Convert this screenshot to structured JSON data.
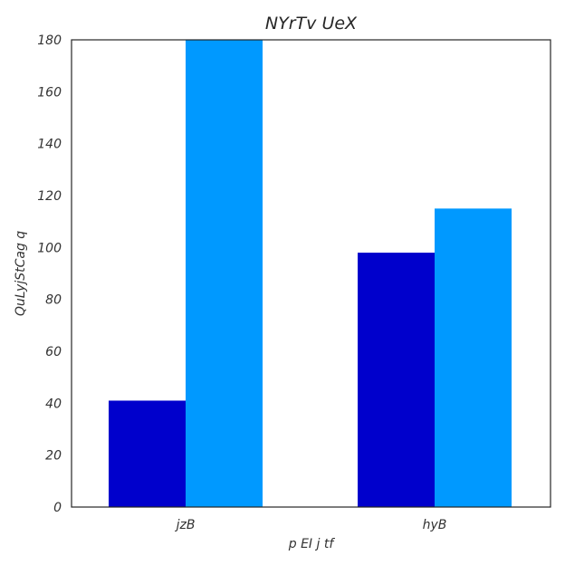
{
  "chart_data": {
    "type": "bar",
    "title": "NYrTv UeX",
    "xlabel": "p EI j tf",
    "ylabel": "QuLyjStCag q",
    "categories": [
      "jzB",
      "hyB"
    ],
    "series": [
      {
        "values": [
          41,
          98
        ],
        "color": "#0000cc"
      },
      {
        "values": [
          180,
          115
        ],
        "color": "#0099ff"
      }
    ],
    "ylim": [
      0,
      180
    ],
    "yticks": [
      0,
      20,
      40,
      60,
      80,
      100,
      120,
      140,
      160,
      180
    ],
    "grid": false,
    "legend": "none"
  }
}
